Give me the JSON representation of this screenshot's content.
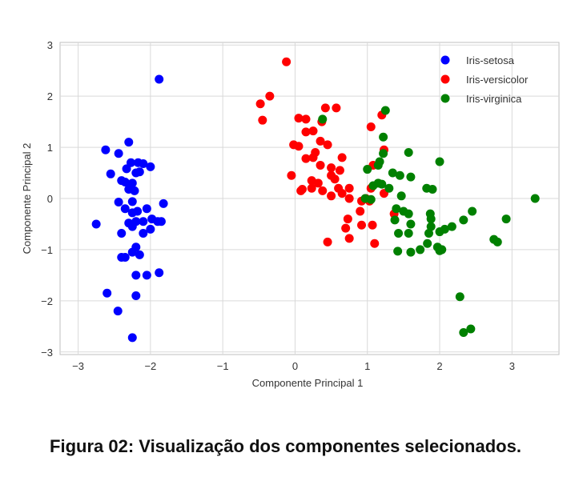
{
  "chart_data": {
    "type": "scatter",
    "xlabel": "Componente Principal 1",
    "ylabel": "Componente Principal 2",
    "xlim": [
      -3.25,
      3.65
    ],
    "ylim": [
      -3.05,
      3.05
    ],
    "xticks": [
      -3,
      -2,
      -1,
      0,
      1,
      2,
      3
    ],
    "yticks": [
      -3,
      -2,
      -1,
      0,
      1,
      2,
      3
    ],
    "grid": true,
    "legend_position": "top-right",
    "series": [
      {
        "name": "Iris-setosa",
        "color": "#0000ff",
        "points": [
          [
            -1.88,
            2.33
          ],
          [
            -2.3,
            1.1
          ],
          [
            -2.62,
            0.95
          ],
          [
            -2.44,
            0.88
          ],
          [
            -2.17,
            0.7
          ],
          [
            -2.1,
            0.68
          ],
          [
            -2.27,
            0.7
          ],
          [
            -2.0,
            0.62
          ],
          [
            -2.33,
            0.58
          ],
          [
            -2.55,
            0.48
          ],
          [
            -2.2,
            0.5
          ],
          [
            -2.15,
            0.52
          ],
          [
            -2.4,
            0.35
          ],
          [
            -2.35,
            0.32
          ],
          [
            -2.25,
            0.3
          ],
          [
            -2.3,
            0.18
          ],
          [
            -2.22,
            0.15
          ],
          [
            -2.44,
            -0.07
          ],
          [
            -2.25,
            -0.06
          ],
          [
            -2.35,
            -0.2
          ],
          [
            -2.18,
            -0.25
          ],
          [
            -2.05,
            -0.2
          ],
          [
            -2.25,
            -0.28
          ],
          [
            -1.82,
            -0.1
          ],
          [
            -2.3,
            -0.48
          ],
          [
            -2.2,
            -0.45
          ],
          [
            -2.1,
            -0.45
          ],
          [
            -1.98,
            -0.4
          ],
          [
            -1.9,
            -0.45
          ],
          [
            -1.85,
            -0.45
          ],
          [
            -2.75,
            -0.5
          ],
          [
            -2.25,
            -0.55
          ],
          [
            -2.0,
            -0.6
          ],
          [
            -2.4,
            -0.68
          ],
          [
            -2.1,
            -0.68
          ],
          [
            -2.2,
            -0.95
          ],
          [
            -2.25,
            -1.05
          ],
          [
            -2.15,
            -1.1
          ],
          [
            -2.4,
            -1.15
          ],
          [
            -2.35,
            -1.15
          ],
          [
            -2.2,
            -1.5
          ],
          [
            -2.05,
            -1.5
          ],
          [
            -1.88,
            -1.45
          ],
          [
            -2.6,
            -1.85
          ],
          [
            -2.2,
            -1.9
          ],
          [
            -2.45,
            -2.2
          ],
          [
            -2.25,
            -2.72
          ]
        ]
      },
      {
        "name": "Iris-versicolor",
        "color": "#ff0000",
        "points": [
          [
            -0.12,
            2.67
          ],
          [
            -0.35,
            2.0
          ],
          [
            -0.48,
            1.85
          ],
          [
            -0.45,
            1.53
          ],
          [
            0.42,
            1.77
          ],
          [
            0.57,
            1.77
          ],
          [
            0.05,
            1.57
          ],
          [
            0.15,
            1.55
          ],
          [
            0.37,
            1.5
          ],
          [
            1.2,
            1.63
          ],
          [
            1.05,
            1.4
          ],
          [
            0.25,
            1.32
          ],
          [
            0.15,
            1.3
          ],
          [
            0.35,
            1.12
          ],
          [
            0.45,
            1.05
          ],
          [
            -0.02,
            1.05
          ],
          [
            0.05,
            1.02
          ],
          [
            0.28,
            0.9
          ],
          [
            0.25,
            0.8
          ],
          [
            0.15,
            0.78
          ],
          [
            0.65,
            0.8
          ],
          [
            1.23,
            0.95
          ],
          [
            0.35,
            0.65
          ],
          [
            0.5,
            0.6
          ],
          [
            0.62,
            0.55
          ],
          [
            1.08,
            0.65
          ],
          [
            -0.05,
            0.45
          ],
          [
            0.5,
            0.45
          ],
          [
            0.55,
            0.38
          ],
          [
            0.23,
            0.35
          ],
          [
            0.32,
            0.3
          ],
          [
            0.23,
            0.2
          ],
          [
            0.6,
            0.2
          ],
          [
            0.75,
            0.2
          ],
          [
            0.1,
            0.18
          ],
          [
            0.08,
            0.15
          ],
          [
            0.38,
            0.15
          ],
          [
            0.5,
            0.05
          ],
          [
            0.65,
            0.1
          ],
          [
            1.05,
            0.2
          ],
          [
            1.23,
            0.1
          ],
          [
            0.75,
            0.0
          ],
          [
            0.92,
            -0.05
          ],
          [
            0.98,
            0.0
          ],
          [
            1.03,
            -0.05
          ],
          [
            0.9,
            -0.25
          ],
          [
            1.37,
            -0.3
          ],
          [
            0.73,
            -0.4
          ],
          [
            0.92,
            -0.52
          ],
          [
            0.7,
            -0.58
          ],
          [
            1.07,
            -0.52
          ],
          [
            0.75,
            -0.78
          ],
          [
            0.45,
            -0.85
          ],
          [
            1.1,
            -0.88
          ]
        ]
      },
      {
        "name": "Iris-virginica",
        "color": "#008000",
        "points": [
          [
            1.25,
            1.72
          ],
          [
            0.38,
            1.55
          ],
          [
            1.22,
            1.2
          ],
          [
            1.22,
            0.88
          ],
          [
            1.17,
            0.72
          ],
          [
            1.57,
            0.9
          ],
          [
            2.0,
            0.72
          ],
          [
            1.15,
            0.65
          ],
          [
            1.0,
            0.57
          ],
          [
            1.35,
            0.5
          ],
          [
            1.45,
            0.45
          ],
          [
            1.6,
            0.42
          ],
          [
            1.15,
            0.3
          ],
          [
            1.2,
            0.28
          ],
          [
            1.08,
            0.25
          ],
          [
            1.3,
            0.2
          ],
          [
            1.82,
            0.2
          ],
          [
            1.9,
            0.18
          ],
          [
            1.47,
            0.05
          ],
          [
            0.97,
            0.0
          ],
          [
            3.32,
            0.0
          ],
          [
            1.05,
            -0.02
          ],
          [
            1.4,
            -0.2
          ],
          [
            1.5,
            -0.25
          ],
          [
            1.57,
            -0.3
          ],
          [
            1.87,
            -0.3
          ],
          [
            2.45,
            -0.25
          ],
          [
            1.88,
            -0.4
          ],
          [
            2.33,
            -0.42
          ],
          [
            2.92,
            -0.4
          ],
          [
            1.38,
            -0.42
          ],
          [
            1.6,
            -0.5
          ],
          [
            1.88,
            -0.55
          ],
          [
            2.07,
            -0.6
          ],
          [
            2.17,
            -0.55
          ],
          [
            1.43,
            -0.68
          ],
          [
            1.57,
            -0.68
          ],
          [
            1.85,
            -0.68
          ],
          [
            2.0,
            -0.65
          ],
          [
            2.75,
            -0.8
          ],
          [
            2.8,
            -0.85
          ],
          [
            1.83,
            -0.88
          ],
          [
            1.97,
            -0.95
          ],
          [
            2.03,
            -1.0
          ],
          [
            2.0,
            -1.02
          ],
          [
            1.42,
            -1.03
          ],
          [
            1.6,
            -1.05
          ],
          [
            1.73,
            -1.0
          ],
          [
            2.28,
            -1.92
          ],
          [
            2.43,
            -2.55
          ],
          [
            2.33,
            -2.62
          ]
        ]
      }
    ]
  },
  "caption": "Figura 02: Visualização dos componentes selecionados."
}
